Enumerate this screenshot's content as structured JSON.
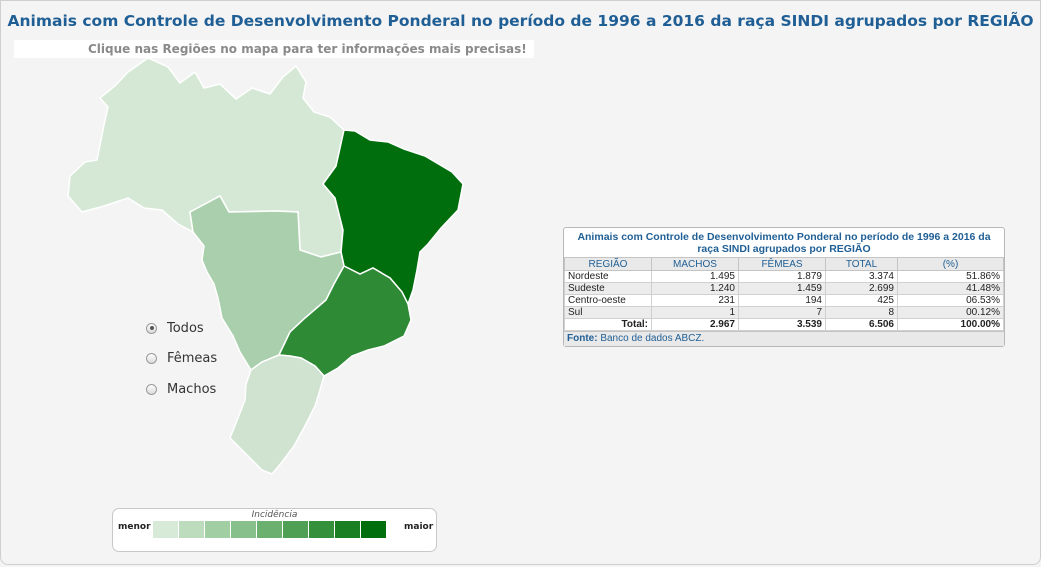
{
  "header": {
    "title": "Animais com Controle de Desenvolvimento Ponderal no período de 1996 a 2016 da raça SINDI agrupados por REGIÃO",
    "subtitle": "Clique nas Regiões no mapa para ter informações mais precisas!"
  },
  "map": {
    "regions": [
      {
        "name": "Norte",
        "color": "#d5e8d6"
      },
      {
        "name": "Nordeste",
        "color": "#006e0d"
      },
      {
        "name": "Centro-oeste",
        "color": "#a9cfac"
      },
      {
        "name": "Sudeste",
        "color": "#2f8a36"
      },
      {
        "name": "Sul",
        "color": "#cfe3d0"
      }
    ]
  },
  "filters": {
    "options": [
      {
        "label": "Todos",
        "checked": true
      },
      {
        "label": "Fêmeas",
        "checked": false
      },
      {
        "label": "Machos",
        "checked": false
      }
    ]
  },
  "legend": {
    "title": "Incidência",
    "low_label": "menor",
    "high_label": "maior",
    "colors": [
      "#d6ead7",
      "#bcdcbd",
      "#a2cea4",
      "#88c08b",
      "#6cb070",
      "#4f9f55",
      "#34903b",
      "#1a7f23",
      "#006e0d"
    ]
  },
  "table": {
    "title": "Animais com Controle de Desenvolvimento Ponderal no período de 1996 a 2016 da raça SINDI agrupados por REGIÃO",
    "columns": [
      "REGIÃO",
      "MACHOS",
      "FÊMEAS",
      "TOTAL",
      "(%)"
    ],
    "rows": [
      [
        "Nordeste",
        "1.495",
        "1.879",
        "3.374",
        "51.86%"
      ],
      [
        "Sudeste",
        "1.240",
        "1.459",
        "2.699",
        "41.48%"
      ],
      [
        "Centro-oeste",
        "231",
        "194",
        "425",
        "06.53%"
      ],
      [
        "Sul",
        "1",
        "7",
        "8",
        "00.12%"
      ]
    ],
    "total": [
      "Total:",
      "2.967",
      "3.539",
      "6.506",
      "100.00%"
    ],
    "source_label": "Fonte:",
    "source_text": "Banco de dados ABCZ."
  }
}
